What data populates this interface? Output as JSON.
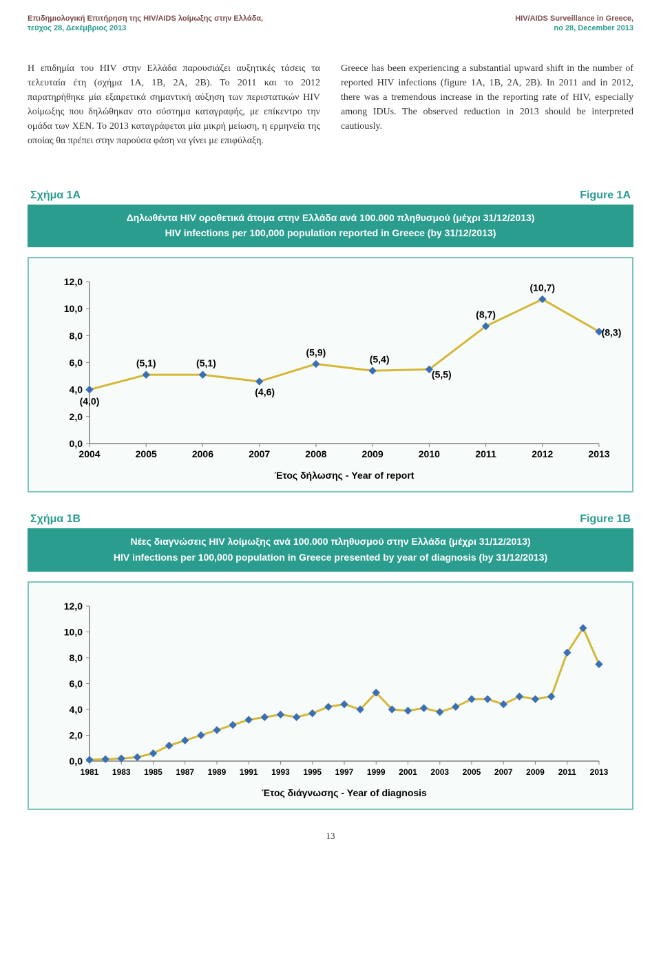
{
  "header": {
    "left_line1": "Επιδημιολογική Επιτήρηση της HIV/AIDS λοίμωξης στην Ελλάδα,",
    "left_line2": "τεύχος 28, Δεκέμβριος 2013",
    "right_line1": "HIV/AIDS Surveillance in Greece,",
    "right_line2": "no 28, December 2013",
    "dark_color": "#7a4a4a",
    "teal_color": "#2a9d8f"
  },
  "body": {
    "greek": "Η επιδημία του HIV στην Ελλάδα παρουσιάζει αυξητικές τάσεις τα τελευταία έτη (σχήμα 1Α, 1Β, 2Α, 2Β). Το 2011 και το 2012 παρατηρήθηκε μία εξαιρετικά σημαντική αύξηση των περιστατικών HIV λοίμωξης που δηλώθηκαν στο σύστημα καταγραφής, με επίκεντρο την ομάδα των ΧΕΝ. Το 2013 καταγράφεται μία μικρή μείωση, η ερμηνεία της οποίας θα πρέπει στην παρούσα φάση να γίνει με επιφύλαξη.",
    "english": "Greece has been experiencing a substantial upward shift in the number of reported HIV infections (figure 1A, 1B, 2A, 2B). In 2011 and in 2012, there was a tremendous increase in the reporting rate of HIV, especially among IDUs. The observed reduction in 2013 should be interpreted cautiously."
  },
  "figure1A": {
    "label_left": "Σχήμα 1Α",
    "label_right": "Figure 1Α",
    "title_gr": "Δηλωθέντα HIV οροθετικά άτομα στην Ελλάδα ανά 100.000 πληθυσμού (μέχρι 31/12/2013)",
    "title_en": "HIV infections per 100,000 population reported in Greece (by 31/12/2013)",
    "chart": {
      "type": "line",
      "x_categories": [
        "2004",
        "2005",
        "2006",
        "2007",
        "2008",
        "2009",
        "2010",
        "2011",
        "2012",
        "2013"
      ],
      "values": [
        4.0,
        5.1,
        5.1,
        4.6,
        5.9,
        5.4,
        5.5,
        8.7,
        10.7,
        8.3
      ],
      "value_labels": [
        "(4,0)",
        "(5,1)",
        "(5,1)",
        "(4,6)",
        "(5,9)",
        "(5,4)",
        "(5,5)",
        "(8,7)",
        "(10,7)",
        "(8,3)"
      ],
      "line_color": "#d4b838",
      "marker_color": "#3a6fb5",
      "ylim": [
        0,
        12
      ],
      "ytick_step": 2,
      "y_tick_labels": [
        "0,0",
        "2,0",
        "4,0",
        "6,0",
        "8,0",
        "10,0",
        "12,0"
      ],
      "xaxis_title": "Έτος δήλωσης - Year of report",
      "axis_color": "#808080",
      "text_color": "#000000",
      "label_fontsize": 14,
      "background": "#f7fbfa"
    }
  },
  "figure1B": {
    "label_left": "Σχήμα 1Β",
    "label_right": "Figure 1B",
    "title_gr": "Νέες διαγνώσεις HIV λοίμωξης ανά 100.000 πληθυσμού στην Ελλάδα (μέχρι 31/12/2013)",
    "title_en": "HIV infections per 100,000 population in Greece presented by year of diagnosis (by 31/12/2013)",
    "chart": {
      "type": "line",
      "x_categories": [
        "1981",
        "1983",
        "1985",
        "1987",
        "1989",
        "1991",
        "1993",
        "1995",
        "1997",
        "1999",
        "2001",
        "2003",
        "2005",
        "2007",
        "2009",
        "2011",
        "2013"
      ],
      "x_years_all": [
        1981,
        1982,
        1983,
        1984,
        1985,
        1986,
        1987,
        1988,
        1989,
        1990,
        1991,
        1992,
        1993,
        1994,
        1995,
        1996,
        1997,
        1998,
        1999,
        2000,
        2001,
        2002,
        2003,
        2004,
        2005,
        2006,
        2007,
        2008,
        2009,
        2010,
        2011,
        2012,
        2013
      ],
      "values": [
        0.1,
        0.15,
        0.2,
        0.3,
        0.6,
        1.2,
        1.6,
        2.0,
        2.4,
        2.8,
        3.2,
        3.4,
        3.6,
        3.4,
        3.7,
        4.2,
        4.4,
        4.0,
        5.3,
        4.0,
        3.9,
        4.1,
        3.8,
        4.2,
        4.8,
        4.8,
        4.4,
        5.0,
        4.8,
        5.0,
        8.4,
        10.3,
        7.5
      ],
      "line_color": "#d4b838",
      "marker_color": "#3a6fb5",
      "ylim": [
        0,
        12
      ],
      "ytick_step": 2,
      "y_tick_labels": [
        "0,0",
        "2,0",
        "4,0",
        "6,0",
        "8,0",
        "10,0",
        "12,0"
      ],
      "xaxis_title": "Έτος διάγνωσης - Year of diagnosis",
      "axis_color": "#808080",
      "text_color": "#000000",
      "label_fontsize": 14,
      "background": "#f7fbfa"
    }
  },
  "pagenum": "13"
}
